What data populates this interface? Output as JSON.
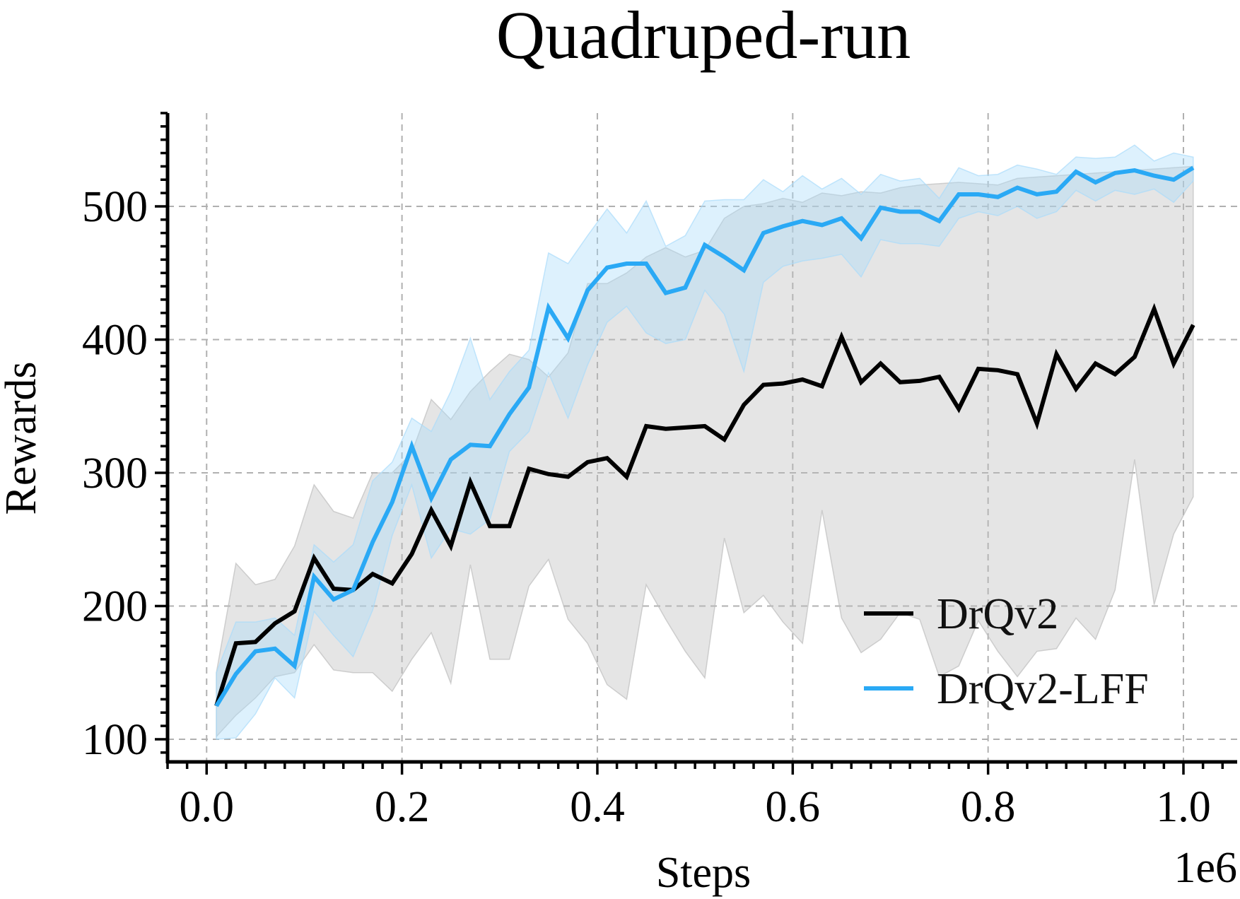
{
  "chart_data": {
    "type": "line",
    "title": "Quadruped-run",
    "xlabel": "Steps",
    "ylabel": "Rewards",
    "x_offset_label": "1e6",
    "xlim": [
      -0.04,
      1.055
    ],
    "ylim": [
      83,
      570
    ],
    "xticks": [
      0.0,
      0.2,
      0.4,
      0.6,
      0.8,
      1.0
    ],
    "xtick_labels": [
      "0.0",
      "0.2",
      "0.4",
      "0.6",
      "0.8",
      "1.0"
    ],
    "yticks": [
      100,
      200,
      300,
      400,
      500
    ],
    "ytick_labels": [
      "100",
      "200",
      "300",
      "400",
      "500"
    ],
    "grid": true,
    "legend_position": "lower-right",
    "x": [
      0.01,
      0.03,
      0.05,
      0.07,
      0.09,
      0.11,
      0.13,
      0.15,
      0.17,
      0.19,
      0.21,
      0.23,
      0.25,
      0.27,
      0.29,
      0.31,
      0.33,
      0.35,
      0.37,
      0.39,
      0.41,
      0.43,
      0.45,
      0.47,
      0.49,
      0.51,
      0.53,
      0.55,
      0.57,
      0.59,
      0.61,
      0.63,
      0.65,
      0.67,
      0.69,
      0.71,
      0.73,
      0.75,
      0.77,
      0.79,
      0.81,
      0.83,
      0.85,
      0.87,
      0.89,
      0.91,
      0.93,
      0.95,
      0.97,
      0.99,
      1.01
    ],
    "series": [
      {
        "name": "DrQv2",
        "color": "#000000",
        "band_color": "#bdbdbd",
        "values": [
          125,
          172,
          173,
          187,
          196,
          236,
          213,
          212,
          224,
          217,
          239,
          272,
          245,
          293,
          260,
          260,
          303,
          299,
          297,
          308,
          311,
          297,
          335,
          333,
          334,
          335,
          325,
          351,
          366,
          367,
          370,
          365,
          402,
          368,
          382,
          368,
          369,
          372,
          348,
          378,
          377,
          374,
          337,
          389,
          363,
          382,
          374,
          387,
          423,
          382,
          411
        ],
        "upper": [
          150,
          232,
          216,
          220,
          245,
          291,
          271,
          266,
          300,
          300,
          315,
          355,
          340,
          361,
          376,
          389,
          385,
          372,
          390,
          442,
          442,
          450,
          462,
          469,
          462,
          467,
          491,
          500,
          502,
          506,
          503,
          510,
          508,
          511,
          510,
          514,
          516,
          517,
          518,
          517,
          516,
          521,
          522,
          523,
          524,
          525,
          526,
          527,
          528,
          529,
          530
        ],
        "lower": [
          102,
          118,
          131,
          147,
          150,
          171,
          152,
          150,
          150,
          136,
          160,
          180,
          142,
          231,
          160,
          160,
          215,
          235,
          190,
          172,
          141,
          130,
          216,
          190,
          166,
          146,
          251,
          195,
          208,
          188,
          172,
          272,
          191,
          165,
          175,
          195,
          190,
          147,
          155,
          189,
          166,
          147,
          166,
          168,
          191,
          175,
          212,
          310,
          201,
          254,
          282
        ]
      },
      {
        "name": "DrQv2-LFF",
        "color": "#2aa9f5",
        "band_color": "#a9dcfb",
        "values": [
          125,
          149,
          166,
          168,
          155,
          222,
          205,
          212,
          248,
          278,
          320,
          281,
          310,
          321,
          320,
          344,
          364,
          424,
          401,
          437,
          454,
          457,
          457,
          435,
          439,
          471,
          462,
          452,
          480,
          485,
          489,
          486,
          491,
          476,
          499,
          496,
          496,
          489,
          509,
          509,
          507,
          514,
          509,
          511,
          526,
          518,
          525,
          527,
          523,
          520,
          529
        ],
        "upper": [
          150,
          188,
          188,
          191,
          178,
          246,
          233,
          246,
          294,
          308,
          341,
          331,
          361,
          401,
          355,
          376,
          392,
          465,
          457,
          478,
          498,
          480,
          504,
          470,
          478,
          504,
          505,
          505,
          520,
          511,
          523,
          513,
          521,
          509,
          524,
          519,
          521,
          506,
          529,
          523,
          524,
          531,
          528,
          524,
          537,
          536,
          537,
          546,
          534,
          540,
          537
        ],
        "lower": [
          100,
          101,
          119,
          146,
          131,
          196,
          178,
          162,
          197,
          253,
          291,
          236,
          258,
          254,
          265,
          316,
          331,
          375,
          341,
          381,
          413,
          425,
          405,
          397,
          400,
          437,
          419,
          376,
          443,
          455,
          459,
          461,
          464,
          447,
          475,
          472,
          472,
          470,
          491,
          496,
          493,
          500,
          491,
          496,
          512,
          504,
          512,
          509,
          513,
          503,
          519
        ]
      }
    ]
  }
}
